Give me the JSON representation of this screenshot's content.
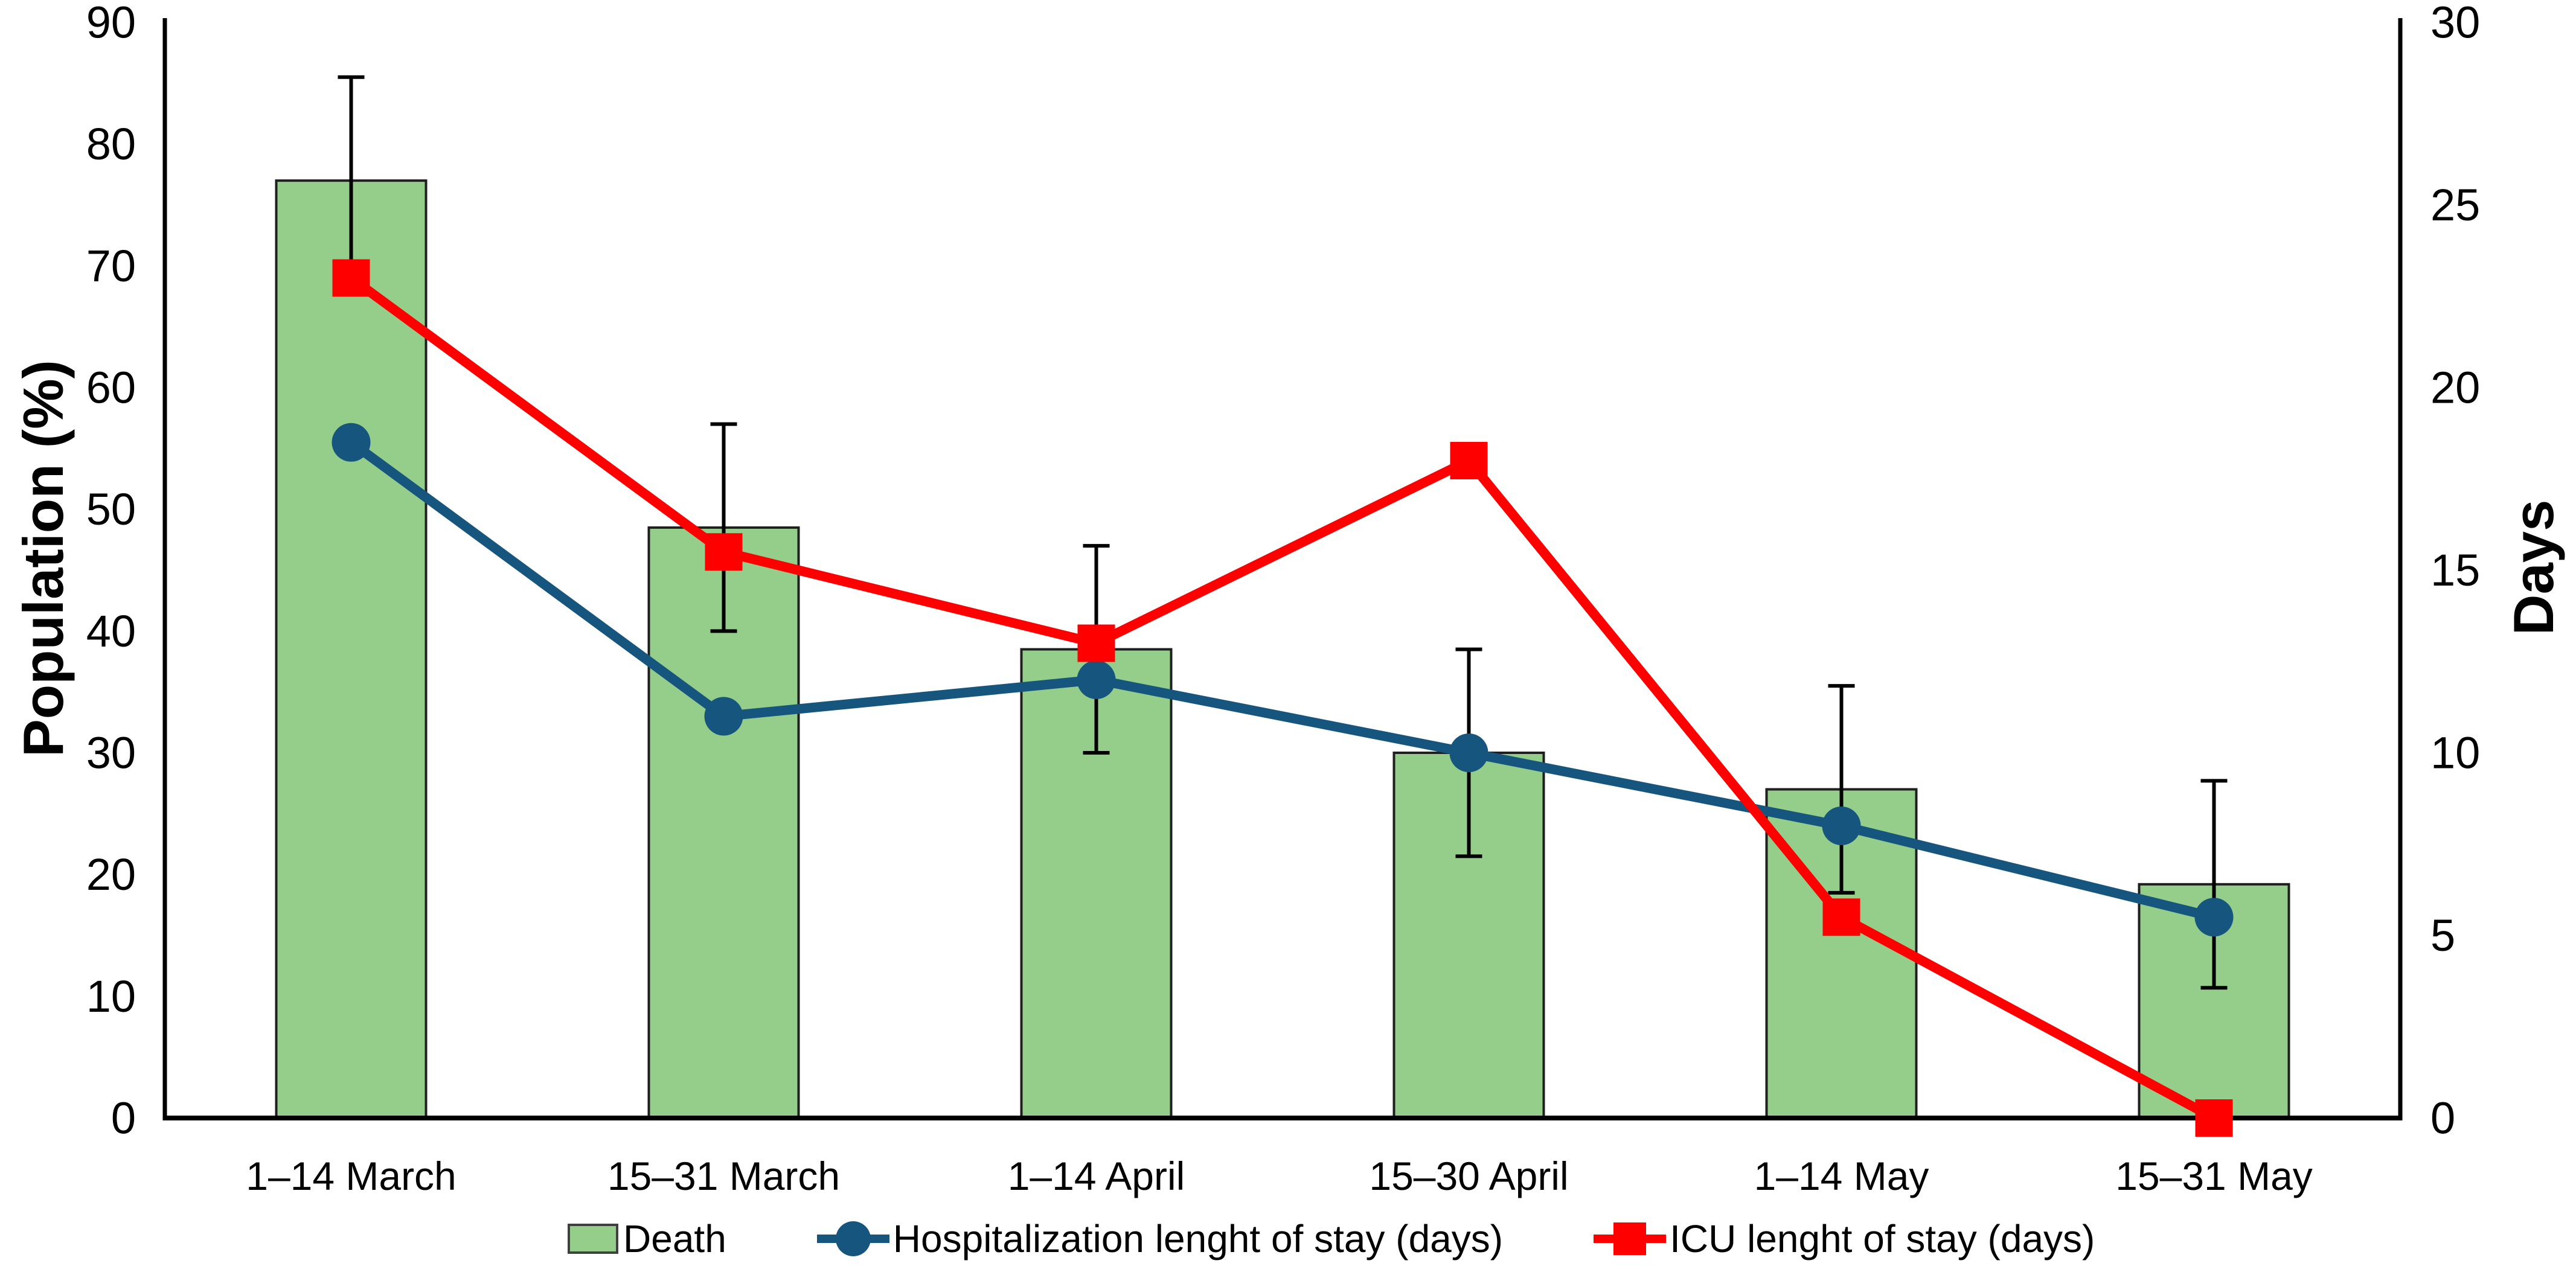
{
  "chart_data": {
    "type": "bar+line combo",
    "background": "#FFFFFF",
    "grid": false,
    "legend_position": "bottom",
    "categories": [
      "1–14 March",
      "15–31 March",
      "1–14 April",
      "15–30 April",
      "1–14 May",
      "15–31 May"
    ],
    "left_axis": {
      "label": "Population (%)",
      "min": 0,
      "max": 90,
      "ticks": [
        0,
        10,
        20,
        30,
        40,
        50,
        60,
        70,
        80,
        90
      ]
    },
    "right_axis": {
      "label": "Days",
      "min": 0,
      "max": 30,
      "ticks": [
        0,
        5,
        10,
        15,
        20,
        25,
        30
      ]
    },
    "series": [
      {
        "name": "Death",
        "type": "bar",
        "axis": "left",
        "unit": "%",
        "values": [
          77,
          48.5,
          38.5,
          30,
          27,
          19.2
        ],
        "error_plus": [
          8.5,
          8.5,
          8.5,
          8.5,
          8.5,
          8.5
        ],
        "error_minus": [
          8.5,
          8.5,
          8.5,
          8.5,
          8.5,
          8.5
        ],
        "fill_color": "#94CE8A",
        "border_color": "#1F1F1F"
      },
      {
        "name": "Hospitalization lenght of stay (days)",
        "type": "line",
        "marker": "circle",
        "axis": "right",
        "unit": "days",
        "values": [
          18.5,
          11,
          12,
          10,
          8,
          5.5
        ],
        "color": "#16567E"
      },
      {
        "name": "ICU lenght of stay (days)",
        "type": "line",
        "marker": "square",
        "axis": "right",
        "unit": "days",
        "values": [
          23,
          15.5,
          13,
          18,
          5.5,
          0
        ],
        "color": "#FE0000"
      }
    ],
    "axis_color": "#000000",
    "error_bar_color": "#000000"
  }
}
